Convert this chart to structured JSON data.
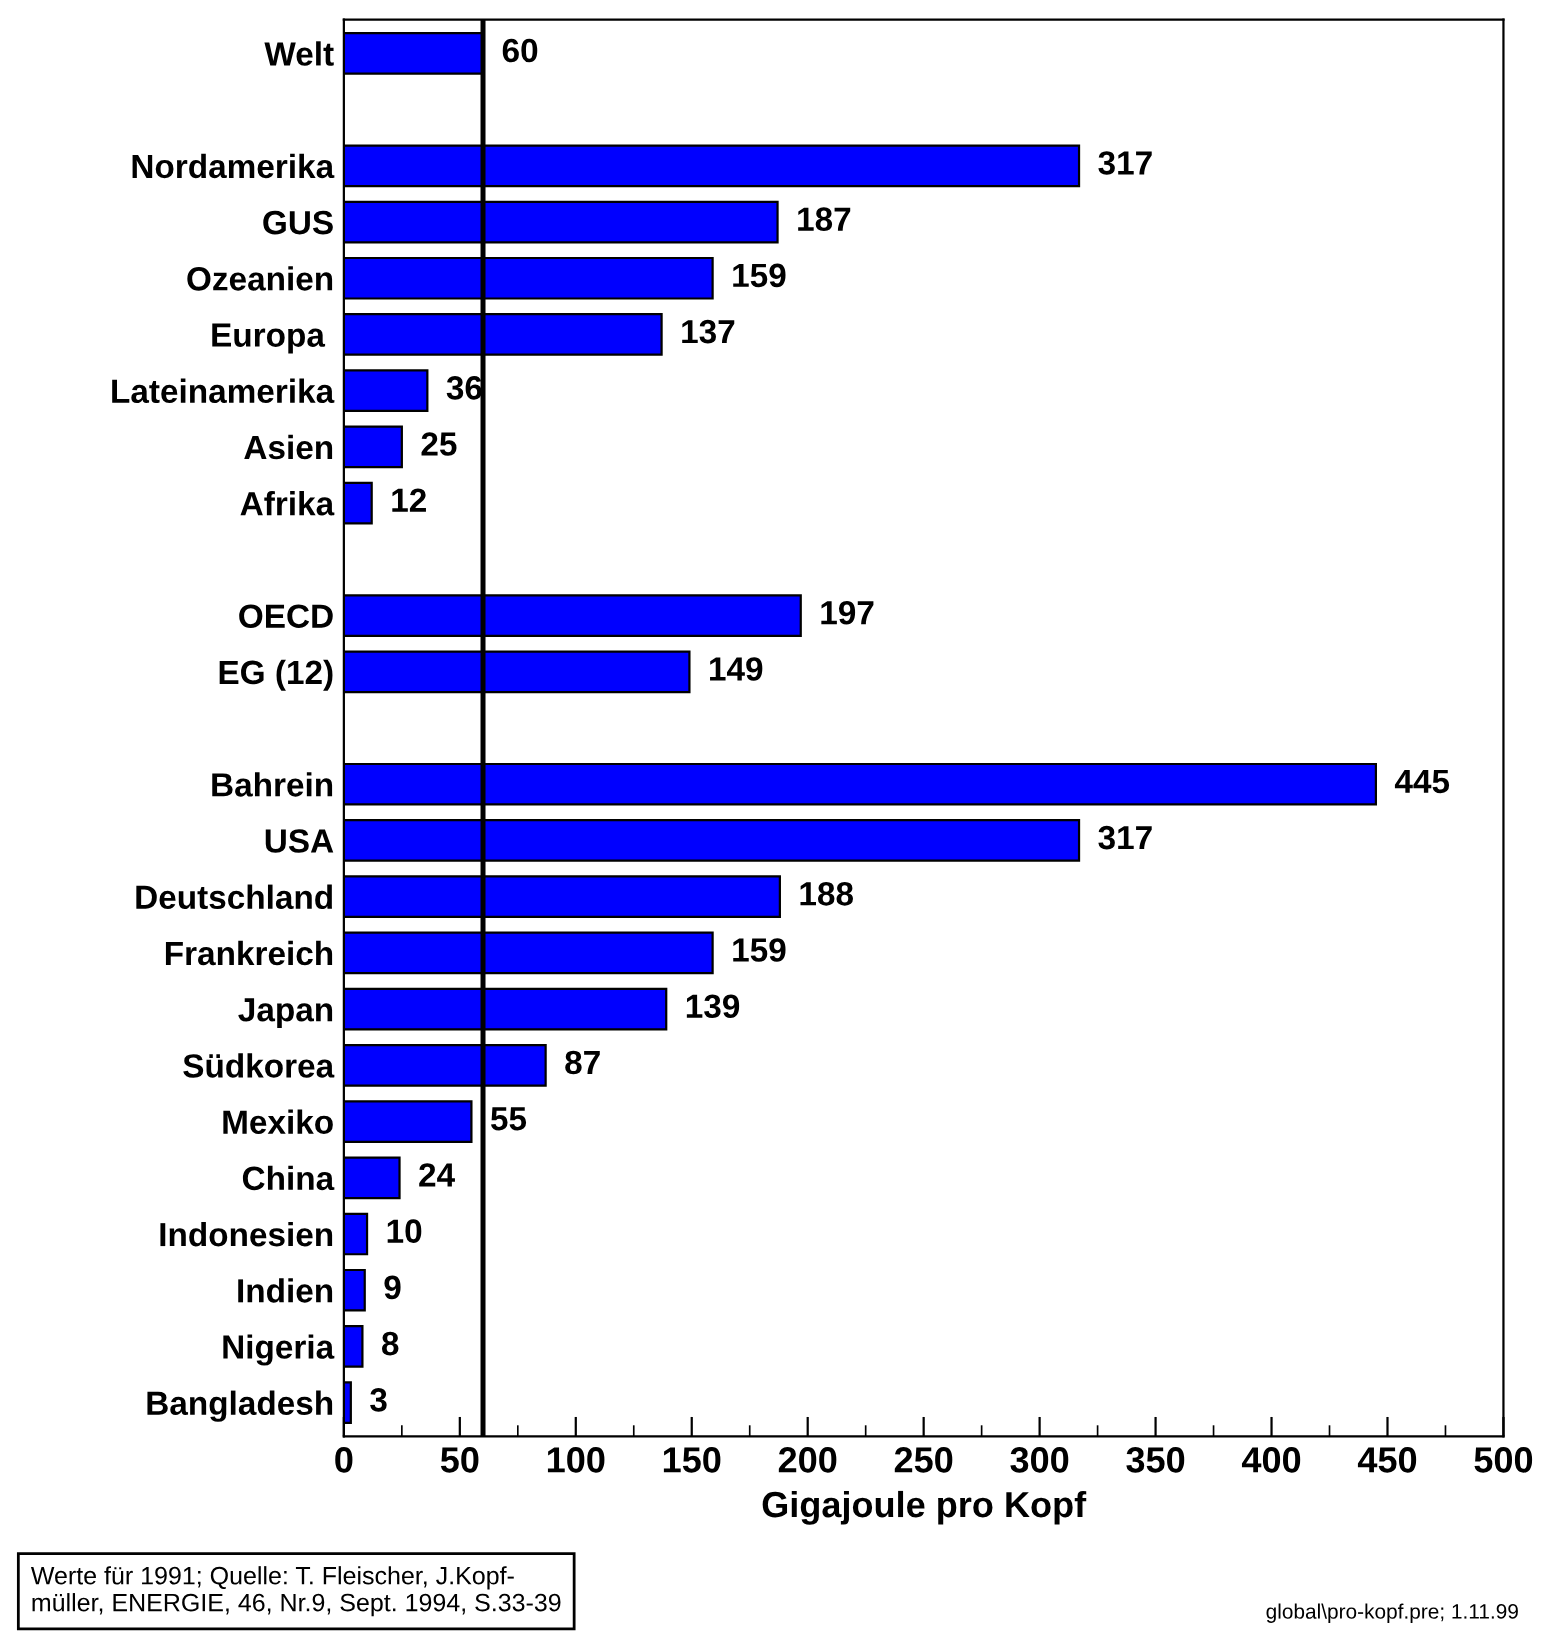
{
  "chart_data": {
    "type": "bar",
    "orientation": "horizontal",
    "xlabel": "Gigajoule pro Kopf",
    "categories": [
      "Welt",
      null,
      "Nordamerika",
      "GUS",
      "Ozeanien",
      "Europa ",
      "Lateinamerika",
      "Asien",
      "Afrika",
      null,
      "OECD",
      "EG (12)",
      null,
      "Bahrein",
      "USA",
      "Deutschland",
      "Frankreich",
      "Japan",
      "Südkorea",
      "Mexiko",
      "China",
      "Indonesien",
      "Indien",
      "Nigeria",
      "Bangladesh"
    ],
    "values": [
      60,
      null,
      317,
      187,
      159,
      137,
      36,
      25,
      12,
      null,
      197,
      149,
      null,
      445,
      317,
      188,
      159,
      139,
      87,
      55,
      24,
      10,
      9,
      8,
      3
    ],
    "color": "#0000ff",
    "data_labels": true,
    "xlim": [
      0,
      500
    ],
    "xticks": [
      0,
      50,
      100,
      150,
      200,
      250,
      300,
      350,
      400,
      450,
      500
    ],
    "grid": false,
    "legend": false,
    "ref_lines": [
      {
        "axis": "x",
        "value": 60,
        "color": "#000000",
        "line_style": "solid"
      }
    ],
    "annotations": [
      "Werte für 1991; Quelle: T. Fleischer, J.Kopf-\nmüller, ENERGIE, 46, Nr.9, Sept. 1994, S.33-39",
      "global\\pro-kopf.pre; 1.11.99"
    ]
  }
}
